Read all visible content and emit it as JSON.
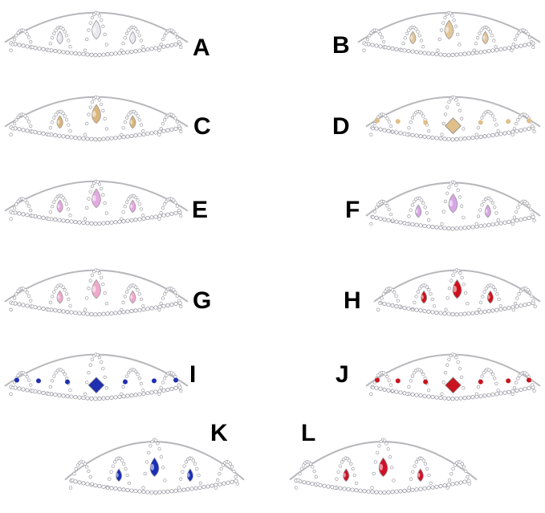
{
  "items": [
    {
      "label": "A",
      "gem_color": "#e8e8f0",
      "gem_style": "clear"
    },
    {
      "label": "B",
      "gem_color": "#e3c79a",
      "gem_style": "champagne"
    },
    {
      "label": "C",
      "gem_color": "#dcb57a",
      "gem_style": "champagne"
    },
    {
      "label": "D",
      "gem_color": "#e0bf8a",
      "gem_style": "champagne-diamond"
    },
    {
      "label": "E",
      "gem_color": "#e6a8e0",
      "gem_style": "pink"
    },
    {
      "label": "F",
      "gem_color": "#d7a6e6",
      "gem_style": "lilac"
    },
    {
      "label": "G",
      "gem_color": "#f0a9cc",
      "gem_style": "pink"
    },
    {
      "label": "H",
      "gem_color": "#d0101c",
      "gem_style": "red"
    },
    {
      "label": "I",
      "gem_color": "#1f2fb0",
      "gem_style": "blue-diamond"
    },
    {
      "label": "J",
      "gem_color": "#c8141e",
      "gem_style": "red-diamond"
    },
    {
      "label": "K",
      "gem_color": "#1a2fb8",
      "gem_style": "blue"
    },
    {
      "label": "L",
      "gem_color": "#d0102a",
      "gem_style": "red"
    }
  ]
}
